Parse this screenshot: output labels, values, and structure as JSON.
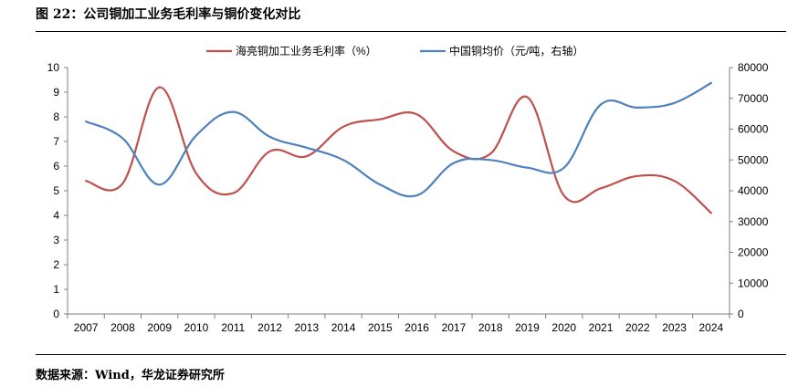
{
  "figure": {
    "title": "图 22：公司铜加工业务毛利率与铜价变化对比",
    "source": "数据来源：Wind，华龙证券研究所"
  },
  "colors": {
    "series_margin": "#C0504D",
    "series_price": "#4F81BD",
    "axis": "#7f7f7f"
  },
  "chart_data": {
    "type": "line",
    "title": "公司铜加工业务毛利率与铜价变化对比",
    "legend_position": "top",
    "categories": [
      "2007",
      "2008",
      "2009",
      "2010",
      "2011",
      "2012",
      "2013",
      "2014",
      "2015",
      "2016",
      "2017",
      "2018",
      "2019",
      "2020",
      "2021",
      "2022",
      "2023",
      "2024"
    ],
    "series": [
      {
        "name": "海亮铜加工业务毛利率（%）",
        "axis": "left",
        "values": [
          5.4,
          5.3,
          9.2,
          5.7,
          4.9,
          6.6,
          6.4,
          7.6,
          7.9,
          8.1,
          6.6,
          6.5,
          8.8,
          4.8,
          5.1,
          5.6,
          5.4,
          4.1
        ]
      },
      {
        "name": "中国铜均价（元/吨，右轴）",
        "axis": "right",
        "values": [
          62500,
          57000,
          42000,
          58000,
          65600,
          57500,
          54000,
          50000,
          42000,
          38500,
          49000,
          50000,
          47500,
          47500,
          68000,
          67000,
          68500,
          75000
        ]
      }
    ],
    "left_axis": {
      "min": 0,
      "max": 10,
      "ticks": [
        "0",
        "1",
        "2",
        "3",
        "4",
        "5",
        "6",
        "7",
        "8",
        "9",
        "10"
      ]
    },
    "right_axis": {
      "min": 0,
      "max": 80000,
      "ticks": [
        "0",
        "10000",
        "20000",
        "30000",
        "40000",
        "50000",
        "60000",
        "70000",
        "80000"
      ]
    },
    "grid": false
  }
}
